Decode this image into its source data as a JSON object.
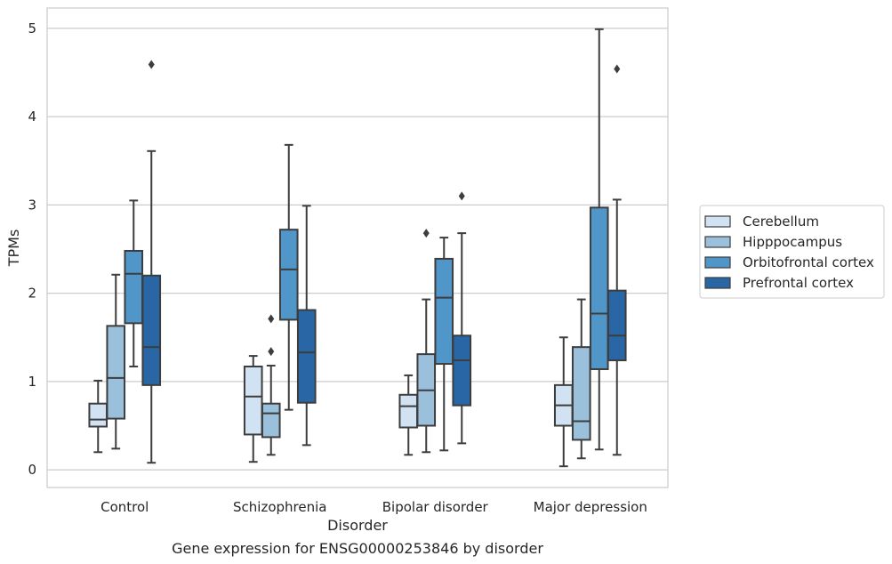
{
  "caption": "Gene expression for ENSG00000253846 by disorder",
  "chart_data": {
    "type": "box",
    "xlabel": "Disorder",
    "ylabel": "TPMs",
    "ylim": [
      -0.2,
      5.23
    ],
    "yticks": [
      "0",
      "1",
      "2",
      "3",
      "4",
      "5"
    ],
    "grid": "horizontal",
    "legend_position": "right",
    "categories": [
      "Control",
      "Schizophrenia",
      "Bipolar disorder",
      "Major depression"
    ],
    "series": [
      {
        "name": "Cerebellum",
        "color": "#d1e2f2",
        "boxes": [
          {
            "min": 0.2,
            "q1": 0.49,
            "median": 0.57,
            "q3": 0.75,
            "max": 1.01,
            "outliers": []
          },
          {
            "min": 0.09,
            "q1": 0.4,
            "median": 0.83,
            "q3": 1.17,
            "max": 1.29,
            "outliers": []
          },
          {
            "min": 0.17,
            "q1": 0.48,
            "median": 0.72,
            "q3": 0.85,
            "max": 1.07,
            "outliers": []
          },
          {
            "min": 0.04,
            "q1": 0.5,
            "median": 0.73,
            "q3": 0.96,
            "max": 1.5,
            "outliers": []
          }
        ]
      },
      {
        "name": "Hipppocampus",
        "color": "#9ac0db",
        "boxes": [
          {
            "min": 0.24,
            "q1": 0.58,
            "median": 1.04,
            "q3": 1.63,
            "max": 2.21,
            "outliers": []
          },
          {
            "min": 0.17,
            "q1": 0.37,
            "median": 0.64,
            "q3": 0.75,
            "max": 1.18,
            "outliers": [
              1.34,
              1.71
            ]
          },
          {
            "min": 0.2,
            "q1": 0.5,
            "median": 0.9,
            "q3": 1.31,
            "max": 1.93,
            "outliers": [
              2.68
            ]
          },
          {
            "min": 0.13,
            "q1": 0.34,
            "median": 0.55,
            "q3": 1.39,
            "max": 1.93,
            "outliers": []
          }
        ]
      },
      {
        "name": "Orbitofrontal cortex",
        "color": "#5096c8",
        "boxes": [
          {
            "min": 1.17,
            "q1": 1.66,
            "median": 2.22,
            "q3": 2.48,
            "max": 3.05,
            "outliers": []
          },
          {
            "min": 0.68,
            "q1": 1.7,
            "median": 2.27,
            "q3": 2.72,
            "max": 3.68,
            "outliers": []
          },
          {
            "min": 0.22,
            "q1": 1.2,
            "median": 1.95,
            "q3": 2.39,
            "max": 2.63,
            "outliers": []
          },
          {
            "min": 0.23,
            "q1": 1.14,
            "median": 1.77,
            "q3": 2.97,
            "max": 4.99,
            "outliers": []
          }
        ]
      },
      {
        "name": "Prefrontal cortex",
        "color": "#2866a6",
        "boxes": [
          {
            "min": 0.08,
            "q1": 0.96,
            "median": 1.39,
            "q3": 2.2,
            "max": 3.61,
            "outliers": [
              4.59
            ]
          },
          {
            "min": 0.28,
            "q1": 0.76,
            "median": 1.33,
            "q3": 1.81,
            "max": 2.99,
            "outliers": []
          },
          {
            "min": 0.3,
            "q1": 0.73,
            "median": 1.24,
            "q3": 1.52,
            "max": 2.68,
            "outliers": [
              3.1
            ]
          },
          {
            "min": 0.17,
            "q1": 1.24,
            "median": 1.52,
            "q3": 2.03,
            "max": 3.06,
            "outliers": [
              4.54
            ]
          }
        ]
      }
    ]
  }
}
